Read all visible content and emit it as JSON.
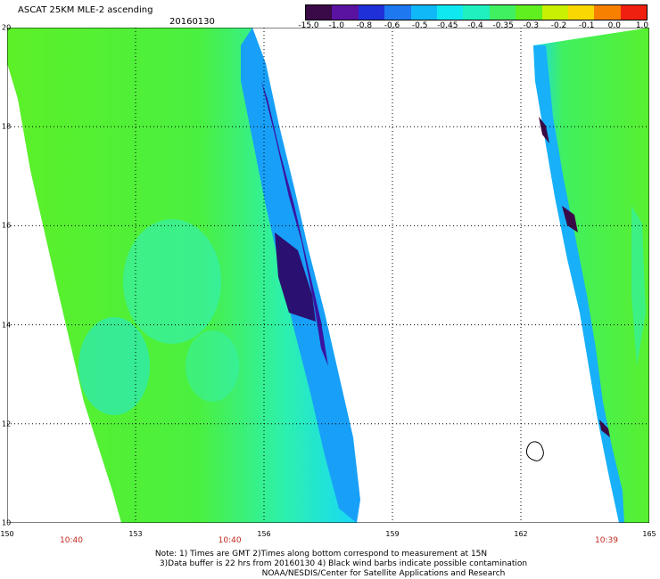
{
  "header": {
    "title": "ASCAT 25KM MLE-2 ascending",
    "date": "20160130"
  },
  "colorbar": {
    "labels": [
      "-15.0",
      "-1.0",
      "-0.8",
      "-0.6",
      "-0.5",
      "-0.45",
      "-0.4",
      "-0.35",
      "-0.3",
      "-0.2",
      "-0.1",
      "0.0",
      "1.0"
    ],
    "colors": [
      "#3a0a46",
      "#5a12a0",
      "#2030d8",
      "#1e78f0",
      "#10b8f8",
      "#10e8f0",
      "#20f0c0",
      "#40f060",
      "#60f020",
      "#c8f000",
      "#f8d800",
      "#f88000",
      "#f02010"
    ]
  },
  "map": {
    "lon_ticks": [
      "150",
      "153",
      "156",
      "159",
      "162",
      "165"
    ],
    "lat_ticks": [
      "10",
      "12",
      "14",
      "16",
      "18",
      "20"
    ],
    "lon_range": [
      150,
      165
    ],
    "lat_range": [
      10,
      20
    ],
    "pass_times": [
      {
        "lon": 151.5,
        "label": "10:40"
      },
      {
        "lon": 155.2,
        "label": "10:40"
      },
      {
        "lon": 164.0,
        "label": "10:39"
      }
    ],
    "land_feature": "small island outline near 162.2E 11.5N"
  },
  "footer": {
    "line1": "Note: 1) Times are GMT 2)Times along bottom correspond to measurement at 15N",
    "line2": "3)Data buffer is 22 hrs from 20160130 4) Black wind barbs indicate possible contamination",
    "line3": "NOAA/NESDIS/Center for Satellite Applications and Research"
  }
}
